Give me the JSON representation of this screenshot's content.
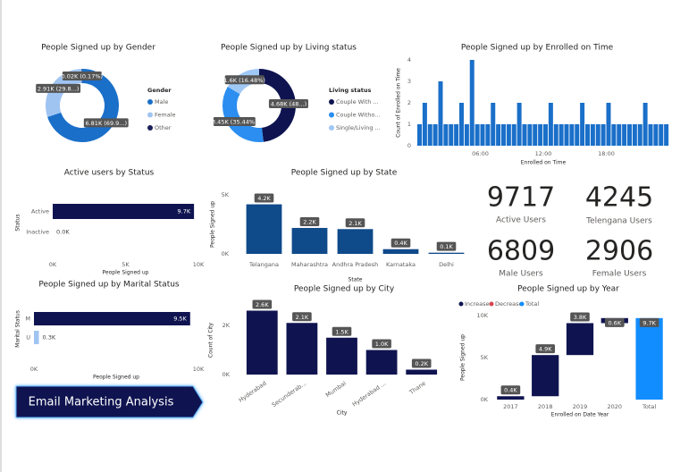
{
  "chart_data": [
    {
      "type": "donut",
      "title": "People Signed up by Gender",
      "legend_title": "Gender",
      "categories": [
        "Male",
        "Female",
        "Other"
      ],
      "values": [
        6810,
        2910,
        20
      ],
      "value_labels": [
        "6.81K (69.9...)",
        "2.91K (29.8...)",
        "0.02K (0.17%)"
      ],
      "colors": [
        "#1a6fc9",
        "#a0c4f2",
        "#1b1f5a"
      ]
    },
    {
      "type": "donut",
      "title": "People Signed up by Living status",
      "legend_title": "Living status",
      "categories": [
        "Couple With ...",
        "Couple Witho...",
        "Single/Living ..."
      ],
      "values": [
        4680,
        3450,
        1600
      ],
      "value_labels": [
        "4.68K (48...)",
        "3.45K (35.44%)",
        "1.6K (16.48%)"
      ],
      "colors": [
        "#0f1450",
        "#2b8ef0",
        "#a0c8f5"
      ]
    },
    {
      "type": "bar",
      "title": "People Signed up by Enrolled on Time",
      "x_label": "Enrolled on Time",
      "y_label": "Count of Enrolled on Time",
      "x": [
        0,
        0.5,
        1,
        1.5,
        2,
        2.5,
        3,
        3.5,
        4,
        4.5,
        5,
        5.5,
        6,
        6.5,
        7,
        7.5,
        8,
        8.5,
        9,
        9.5,
        10,
        10.5,
        11,
        11.5,
        12,
        12.5,
        13,
        13.5,
        14,
        14.5,
        15,
        15.5,
        16,
        16.5,
        17,
        17.5,
        18,
        18.5,
        19,
        19.5,
        20,
        20.5,
        21,
        21.5,
        22,
        22.5,
        23,
        23.5
      ],
      "values": [
        1,
        2,
        1,
        1,
        3,
        1,
        1,
        1,
        2,
        1,
        4,
        1,
        1,
        1,
        2,
        1,
        1,
        1,
        1,
        2,
        1,
        1,
        1,
        1,
        1,
        2,
        1,
        1,
        1,
        1,
        1,
        2,
        1,
        1,
        1,
        1,
        2,
        1,
        1,
        1,
        1,
        1,
        1,
        2,
        1,
        1,
        1,
        1
      ],
      "xlim": [
        0,
        24
      ],
      "xticks": [
        {
          "value": 6,
          "label": "06:00"
        },
        {
          "value": 12,
          "label": "12:00"
        },
        {
          "value": 18,
          "label": "18:00"
        }
      ],
      "ylim": [
        0,
        4
      ],
      "yticks": [
        0,
        1,
        2,
        3,
        4
      ],
      "color": "#1a6fc9"
    },
    {
      "type": "hbar",
      "title": "Active users by Status",
      "x_label": "People Signed up",
      "y_label": "Status",
      "categories": [
        "Active",
        "Inactive"
      ],
      "values": [
        9700,
        0
      ],
      "value_labels": [
        "9.7K",
        "0.0K"
      ],
      "xlim": [
        0,
        10000
      ],
      "xticks": [
        {
          "value": 0,
          "label": "0K"
        },
        {
          "value": 5000,
          "label": "5K"
        },
        {
          "value": 10000,
          "label": "10K"
        }
      ],
      "colors": [
        "#0f1450",
        "#0f1450"
      ]
    },
    {
      "type": "column",
      "title": "People Signed up by State",
      "x_label": "State",
      "y_label": "People Signed up",
      "categories": [
        "Telangana",
        "Maharashtra",
        "Andhra Pradesh",
        "Karnataka",
        "Delhi"
      ],
      "values": [
        4200,
        2200,
        2100,
        400,
        100
      ],
      "value_labels": [
        "4.2K",
        "2.2K",
        "2.1K",
        "0.4K",
        "0.1K"
      ],
      "ylim": [
        0,
        5000
      ],
      "yticks": [
        {
          "value": 0,
          "label": "0K"
        },
        {
          "value": 5000,
          "label": "5K"
        }
      ],
      "color": "#0f4a8a",
      "rotate_labels": false
    },
    {
      "type": "hbar",
      "title": "People Signed up by Marital Status",
      "x_label": "People Signed up",
      "y_label": "Marital Status",
      "categories": [
        "M",
        "U"
      ],
      "values": [
        9500,
        300
      ],
      "value_labels": [
        "9.5K",
        "0.3K"
      ],
      "xlim": [
        0,
        10000
      ],
      "xticks": [
        {
          "value": 0,
          "label": "0K"
        },
        {
          "value": 10000,
          "label": "10K"
        }
      ],
      "colors": [
        "#0f1450",
        "#a0c4f2"
      ]
    },
    {
      "type": "column",
      "title": "People Signed up by City",
      "x_label": "City",
      "y_label": "Count of City",
      "categories": [
        "Hyderabad",
        "Secunderab...",
        "Mumbai",
        "Hyderabad ...",
        "Thane"
      ],
      "values": [
        2600,
        2100,
        1500,
        1000,
        200
      ],
      "value_labels": [
        "2.6K",
        "2.1K",
        "1.5K",
        "1.0K",
        "0.2K"
      ],
      "ylim": [
        0,
        2800
      ],
      "yticks": [
        {
          "value": 0,
          "label": "0K"
        },
        {
          "value": 2000,
          "label": "2K"
        }
      ],
      "color": "#0f1450",
      "rotate_labels": true
    },
    {
      "type": "waterfall",
      "title": "People Signed up by Year",
      "x_label": "Enrolled on Date Year",
      "y_label": "People Signed up",
      "legend": [
        {
          "name": "Increase",
          "color": "#0f1450"
        },
        {
          "name": "Decrease",
          "color": "#d64550"
        },
        {
          "name": "Total",
          "color": "#118dff"
        }
      ],
      "categories": [
        "2017",
        "2018",
        "2019",
        "2020",
        "Total"
      ],
      "values": [
        400,
        4900,
        3800,
        600,
        9700
      ],
      "value_labels": [
        "0.4K",
        "4.9K",
        "3.8K",
        "0.6K",
        "9.7K"
      ],
      "totals": [
        false,
        false,
        false,
        false,
        true
      ],
      "ylim": [
        0,
        10000
      ],
      "yticks": [
        {
          "value": 0,
          "label": "0K"
        },
        {
          "value": 5000,
          "label": "5K"
        },
        {
          "value": 10000,
          "label": "10K"
        }
      ]
    }
  ],
  "kpis": [
    {
      "value": 9717,
      "label": "Active Users"
    },
    {
      "value": 4245,
      "label": "Telengana Users"
    },
    {
      "value": 6809,
      "label": "Male Users"
    },
    {
      "value": 2906,
      "label": "Female Users"
    }
  ],
  "banner": "Email Marketing Analysis"
}
